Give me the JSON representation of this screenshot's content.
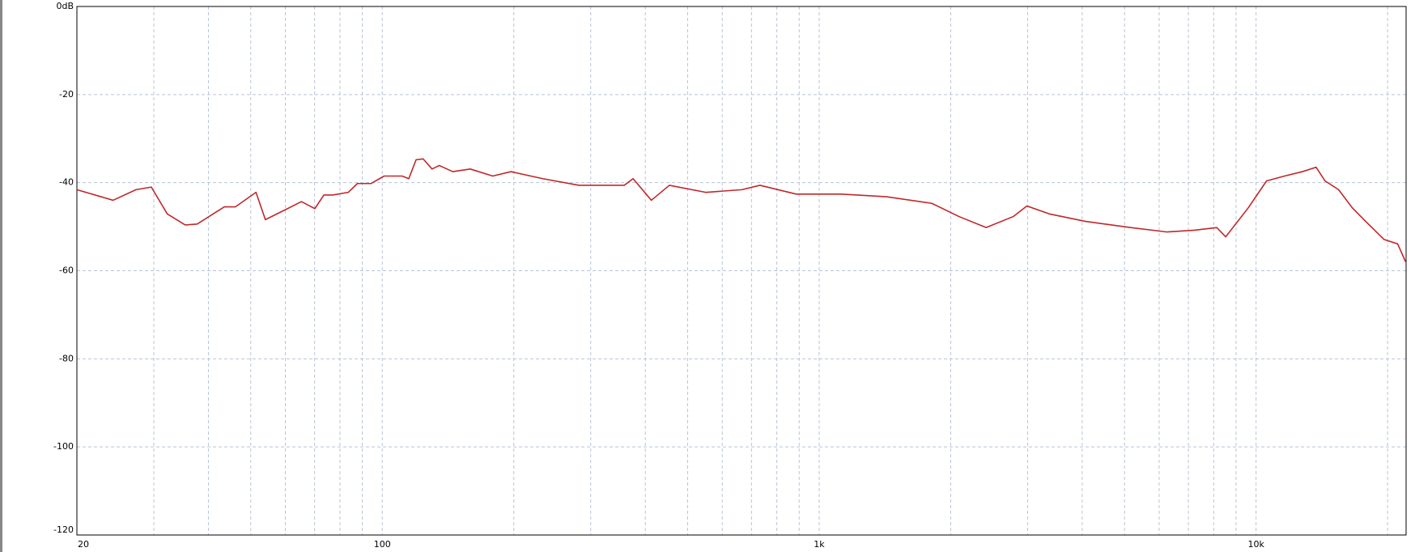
{
  "chart_data": {
    "type": "line",
    "x": [
      20,
      24.2,
      27.3,
      29.6,
      32.2,
      35.4,
      37.7,
      43.5,
      46.1,
      51.4,
      54,
      60.7,
      65.3,
      70.1,
      73.5,
      77,
      83.6,
      87.7,
      94.2,
      101,
      111,
      115,
      119.5,
      124,
      130,
      135,
      145,
      159,
      179,
      197,
      233,
      282,
      358,
      375,
      413,
      454,
      550,
      665,
      732,
      886,
      1122,
      1426,
      1811,
      2090,
      2411,
      2781,
      2988,
      3364,
      4073,
      5168,
      6258,
      7220,
      8130,
      8520,
      9600,
      10570,
      11620,
      12770,
      13720,
      14380,
      15450,
      16600,
      17820,
      19630,
      21090,
      22000
    ],
    "series": [
      {
        "color": "#c0282a",
        "values": [
          -41.6,
          -44,
          -41.6,
          -41,
          -47.1,
          -49.6,
          -49.4,
          -45.5,
          -45.5,
          -42.2,
          -48.4,
          -45.9,
          -44.3,
          -45.9,
          -42.8,
          -42.8,
          -42.2,
          -40.2,
          -40.2,
          -38.5,
          -38.5,
          -39.1,
          -34.8,
          -34.6,
          -36.9,
          -36.1,
          -37.5,
          -36.9,
          -38.5,
          -37.5,
          -39.1,
          -40.6,
          -40.6,
          -39.1,
          -44,
          -40.6,
          -42.2,
          -41.6,
          -40.6,
          -42.6,
          -42.6,
          -43.2,
          -44.7,
          -47.7,
          -50.2,
          -47.7,
          -45.3,
          -47.1,
          -48.8,
          -50.2,
          -51.2,
          -50.8,
          -50.2,
          -52.3,
          -45.7,
          -39.6,
          -38.5,
          -37.5,
          -36.5,
          -39.6,
          -41.6,
          -45.7,
          -48.8,
          -52.9,
          -53.9,
          -58
        ]
      }
    ],
    "xlim": [
      20,
      22050
    ],
    "log_x": true,
    "xticks": [
      20,
      100,
      {
        "value": 1000,
        "label": "1k"
      },
      {
        "value": 10000,
        "label": "10k"
      }
    ],
    "xminor_ticks": [
      30,
      40,
      50,
      60,
      70,
      80,
      90,
      200,
      300,
      400,
      500,
      600,
      700,
      800,
      900,
      2000,
      3000,
      4000,
      5000,
      6000,
      7000,
      8000,
      9000,
      20000
    ],
    "ylim": [
      -120,
      0
    ],
    "yticks": [
      {
        "value": 0,
        "label": "0dB"
      },
      -20,
      -40,
      -60,
      -80,
      -100,
      -120
    ],
    "grid": true
  }
}
